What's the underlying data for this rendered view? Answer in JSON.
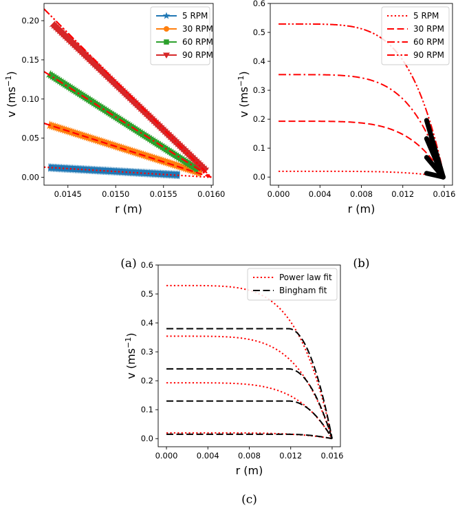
{
  "chart_data": [
    {
      "type": "line",
      "panel": "a",
      "caption": "(a)",
      "xlabel": "r (m)",
      "ylabel_main": "v (ms",
      "ylabel_exp": "−1",
      "ylabel_close": ")",
      "xlim": [
        0.01425,
        0.01602
      ],
      "ylim": [
        -0.01,
        0.222
      ],
      "xticks": [
        0.0145,
        0.015,
        0.0155,
        0.016
      ],
      "xtick_labels": [
        "0.0145",
        "0.0150",
        "0.0155",
        "0.0160"
      ],
      "yticks": [
        0.0,
        0.05,
        0.1,
        0.15,
        0.2
      ],
      "ytick_labels": [
        "0.00",
        "0.05",
        "0.10",
        "0.15",
        "0.20"
      ],
      "legend_position": "top-right",
      "series": [
        {
          "name": "5 RPM",
          "color": "#1f77b4",
          "marker": "star",
          "x_start": 0.0143,
          "x_end": 0.01567,
          "y_start": 0.0125,
          "y_end": 0.003
        },
        {
          "name": "30 RPM",
          "color": "#ff7f0e",
          "marker": "circle",
          "x_start": 0.0143,
          "x_end": 0.0159,
          "y_start": 0.067,
          "y_end": 0.005
        },
        {
          "name": "60 RPM",
          "color": "#2ca02c",
          "marker": "square",
          "x_start": 0.0143,
          "x_end": 0.01587,
          "y_start": 0.132,
          "y_end": 0.009
        },
        {
          "name": "90 RPM",
          "color": "#d62728",
          "marker": "triangle-down",
          "x_start": 0.01434,
          "x_end": 0.01595,
          "y_start": 0.196,
          "y_end": 0.008
        }
      ],
      "fits": [
        {
          "style": "dotted",
          "color": "#ff0000",
          "x": [
            0.01425,
            0.016
          ],
          "y": [
            0.013,
            0.0
          ]
        },
        {
          "style": "dashed",
          "color": "#ff0000",
          "x": [
            0.01425,
            0.016
          ],
          "y": [
            0.069,
            0.0
          ]
        },
        {
          "style": "dashdot",
          "color": "#ff0000",
          "x": [
            0.01425,
            0.016
          ],
          "y": [
            0.135,
            0.0
          ]
        },
        {
          "style": "dashdotdot",
          "color": "#ff0000",
          "x": [
            0.01425,
            0.016
          ],
          "y": [
            0.215,
            0.0
          ]
        }
      ]
    },
    {
      "type": "line",
      "panel": "b",
      "caption": "(b)",
      "xlabel": "r (m)",
      "ylabel_main": "v (ms",
      "ylabel_exp": "−1",
      "ylabel_close": ")",
      "xlim": [
        -0.0008,
        0.0168
      ],
      "ylim": [
        -0.028,
        0.6
      ],
      "xticks": [
        0.0,
        0.004,
        0.008,
        0.012,
        0.016
      ],
      "xtick_labels": [
        "0.000",
        "0.004",
        "0.008",
        "0.012",
        "0.016"
      ],
      "yticks": [
        0.0,
        0.1,
        0.2,
        0.3,
        0.4,
        0.5,
        0.6
      ],
      "ytick_labels": [
        "0.0",
        "0.1",
        "0.2",
        "0.3",
        "0.4",
        "0.5",
        "0.6"
      ],
      "legend_position": "top-right",
      "R": 0.016,
      "series": [
        {
          "name": "5 RPM",
          "style": "dotted",
          "color": "#ff0000",
          "vmax": 0.02,
          "n": 4.0
        },
        {
          "name": "30 RPM",
          "style": "dashed",
          "color": "#ff0000",
          "vmax": 0.193,
          "n": 4.0
        },
        {
          "name": "60 RPM",
          "style": "dashdot",
          "color": "#ff0000",
          "vmax": 0.354,
          "n": 4.0
        },
        {
          "name": "90 RPM",
          "style": "dashdotdot",
          "color": "#ff0000",
          "vmax": 0.529,
          "n": 4.0
        }
      ],
      "experimental": {
        "color": "#000000",
        "x_start": 0.0143,
        "x_end": 0.0159,
        "y_start": [
          0.013,
          0.068,
          0.133,
          0.196
        ],
        "y_end": 0.0
      }
    },
    {
      "type": "line",
      "panel": "c",
      "caption": "(c)",
      "xlabel": "r (m)",
      "ylabel_main": "v (ms",
      "ylabel_exp": "−1",
      "ylabel_close": ")",
      "xlim": [
        -0.0008,
        0.0168
      ],
      "ylim": [
        -0.028,
        0.6
      ],
      "xticks": [
        0.0,
        0.004,
        0.008,
        0.012,
        0.016
      ],
      "xtick_labels": [
        "0.000",
        "0.004",
        "0.008",
        "0.012",
        "0.016"
      ],
      "yticks": [
        0.0,
        0.1,
        0.2,
        0.3,
        0.4,
        0.5,
        0.6
      ],
      "ytick_labels": [
        "0.0",
        "0.1",
        "0.2",
        "0.3",
        "0.4",
        "0.5",
        "0.6"
      ],
      "legend_position": "top-right",
      "R": 0.016,
      "legend": [
        {
          "name": "Power law fit",
          "style": "dotted",
          "color": "#ff0000"
        },
        {
          "name": "Bingham fit",
          "style": "dashed",
          "color": "#000000"
        }
      ],
      "power_law_fits": [
        {
          "vmax": 0.02,
          "n": 4.0
        },
        {
          "vmax": 0.193,
          "n": 4.0
        },
        {
          "vmax": 0.354,
          "n": 4.0
        },
        {
          "vmax": 0.529,
          "n": 4.0
        }
      ],
      "bingham_fits": [
        {
          "vmax": 0.015,
          "r0": 0.0118
        },
        {
          "vmax": 0.13,
          "r0": 0.0118
        },
        {
          "vmax": 0.241,
          "r0": 0.0118
        },
        {
          "vmax": 0.38,
          "r0": 0.0118
        }
      ]
    }
  ]
}
